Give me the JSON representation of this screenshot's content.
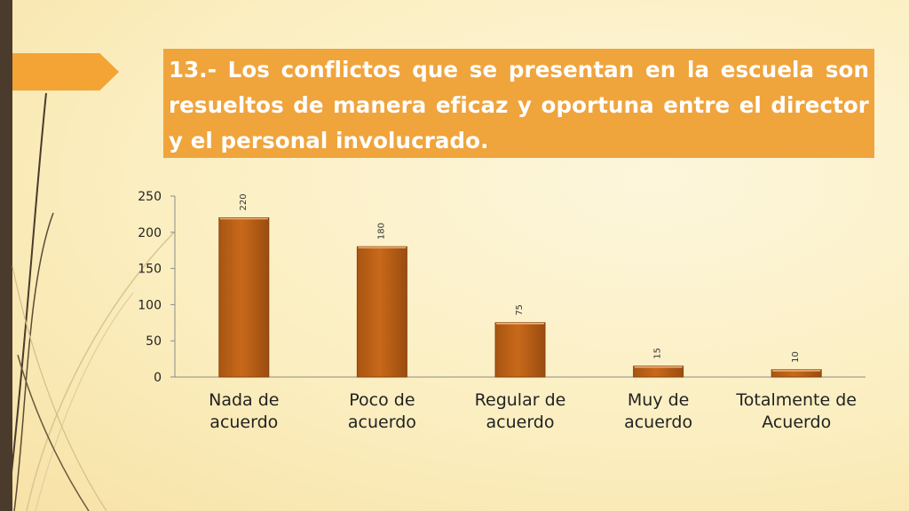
{
  "slide": {
    "title": "13.- Los conflictos que se presentan en la escuela son resueltos de manera eficaz y oportuna entre el director y el personal involucrado.",
    "colors": {
      "bar": "#c8691a",
      "title_box": "#f0a43c",
      "left_bar": "#4a3b2c"
    }
  },
  "chart_data": {
    "type": "bar",
    "categories": [
      [
        "Nada de",
        "acuerdo"
      ],
      [
        "Poco de",
        "acuerdo"
      ],
      [
        "Regular de",
        "acuerdo"
      ],
      [
        "Muy de",
        "acuerdo"
      ],
      [
        "Totalmente de",
        "Acuerdo"
      ]
    ],
    "values": [
      220,
      180,
      75,
      15,
      10
    ],
    "ylim": [
      0,
      250
    ],
    "yticks": [
      0,
      50,
      100,
      150,
      200,
      250
    ],
    "title": "",
    "xlabel": "",
    "ylabel": "",
    "grid": false,
    "data_labels": true
  }
}
